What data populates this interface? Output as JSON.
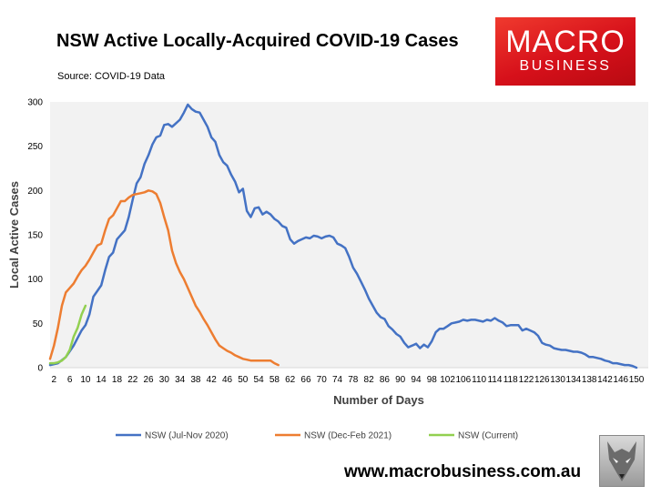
{
  "header": {
    "title": "NSW Active Locally-Acquired COVID-19 Cases",
    "source": "Source: COVID-19 Data"
  },
  "logo": {
    "line1": "MACRO",
    "line2": "BUSINESS"
  },
  "footer": {
    "website": "www.macrobusiness.com.au"
  },
  "colors": {
    "background": "#f2f2f2",
    "blue": "#4472c4",
    "orange": "#ed7d31",
    "green": "#92d050",
    "logo_red": "#e31b23"
  },
  "chart_data": {
    "type": "line",
    "title": "NSW Active Locally-Acquired COVID-19 Cases",
    "xlabel": "Number of Days",
    "ylabel": "Local Active Cases",
    "xlim": [
      1,
      153
    ],
    "ylim": [
      0,
      300
    ],
    "x_ticks": [
      2,
      6,
      10,
      14,
      18,
      22,
      26,
      30,
      34,
      38,
      42,
      46,
      50,
      54,
      58,
      62,
      66,
      70,
      74,
      78,
      82,
      86,
      90,
      94,
      98,
      102,
      106,
      110,
      114,
      118,
      122,
      126,
      130,
      134,
      138,
      142,
      146,
      150
    ],
    "y_ticks": [
      0,
      50,
      100,
      150,
      200,
      250,
      300
    ],
    "grid": false,
    "legend_position": "bottom",
    "series": [
      {
        "name": "NSW (Jul-Nov 2020)",
        "color": "#4472c4",
        "points": [
          [
            1,
            3
          ],
          [
            3,
            5
          ],
          [
            5,
            12
          ],
          [
            7,
            25
          ],
          [
            9,
            42
          ],
          [
            10,
            48
          ],
          [
            11,
            60
          ],
          [
            12,
            80
          ],
          [
            14,
            93
          ],
          [
            15,
            110
          ],
          [
            16,
            125
          ],
          [
            17,
            130
          ],
          [
            18,
            145
          ],
          [
            20,
            155
          ],
          [
            21,
            170
          ],
          [
            22,
            190
          ],
          [
            23,
            208
          ],
          [
            24,
            215
          ],
          [
            25,
            230
          ],
          [
            26,
            240
          ],
          [
            27,
            252
          ],
          [
            28,
            260
          ],
          [
            29,
            262
          ],
          [
            30,
            274
          ],
          [
            31,
            275
          ],
          [
            32,
            272
          ],
          [
            33,
            276
          ],
          [
            34,
            280
          ],
          [
            35,
            288
          ],
          [
            36,
            297
          ],
          [
            37,
            292
          ],
          [
            38,
            289
          ],
          [
            39,
            288
          ],
          [
            40,
            280
          ],
          [
            41,
            272
          ],
          [
            42,
            260
          ],
          [
            43,
            255
          ],
          [
            44,
            240
          ],
          [
            45,
            232
          ],
          [
            46,
            228
          ],
          [
            47,
            218
          ],
          [
            48,
            210
          ],
          [
            49,
            198
          ],
          [
            50,
            202
          ],
          [
            51,
            177
          ],
          [
            52,
            170
          ],
          [
            53,
            180
          ],
          [
            54,
            181
          ],
          [
            55,
            173
          ],
          [
            56,
            176
          ],
          [
            57,
            173
          ],
          [
            58,
            168
          ],
          [
            59,
            165
          ],
          [
            60,
            160
          ],
          [
            61,
            158
          ],
          [
            62,
            145
          ],
          [
            63,
            140
          ],
          [
            64,
            143
          ],
          [
            65,
            145
          ],
          [
            66,
            147
          ],
          [
            67,
            146
          ],
          [
            68,
            149
          ],
          [
            69,
            148
          ],
          [
            70,
            146
          ],
          [
            71,
            148
          ],
          [
            72,
            149
          ],
          [
            73,
            147
          ],
          [
            74,
            140
          ],
          [
            75,
            138
          ],
          [
            76,
            135
          ],
          [
            77,
            125
          ],
          [
            78,
            113
          ],
          [
            79,
            106
          ],
          [
            80,
            97
          ],
          [
            81,
            88
          ],
          [
            82,
            78
          ],
          [
            83,
            70
          ],
          [
            84,
            62
          ],
          [
            85,
            57
          ],
          [
            86,
            55
          ],
          [
            87,
            47
          ],
          [
            88,
            43
          ],
          [
            89,
            38
          ],
          [
            90,
            35
          ],
          [
            91,
            28
          ],
          [
            92,
            23
          ],
          [
            93,
            25
          ],
          [
            94,
            27
          ],
          [
            95,
            22
          ],
          [
            96,
            26
          ],
          [
            97,
            23
          ],
          [
            98,
            30
          ],
          [
            99,
            40
          ],
          [
            100,
            44
          ],
          [
            101,
            44
          ],
          [
            102,
            47
          ],
          [
            103,
            50
          ],
          [
            104,
            51
          ],
          [
            105,
            52
          ],
          [
            106,
            54
          ],
          [
            107,
            53
          ],
          [
            108,
            54
          ],
          [
            109,
            54
          ],
          [
            110,
            53
          ],
          [
            111,
            52
          ],
          [
            112,
            54
          ],
          [
            113,
            53
          ],
          [
            114,
            56
          ],
          [
            115,
            53
          ],
          [
            116,
            51
          ],
          [
            117,
            47
          ],
          [
            118,
            48
          ],
          [
            119,
            48
          ],
          [
            120,
            48
          ],
          [
            121,
            42
          ],
          [
            122,
            44
          ],
          [
            123,
            42
          ],
          [
            124,
            40
          ],
          [
            125,
            36
          ],
          [
            126,
            28
          ],
          [
            127,
            26
          ],
          [
            128,
            25
          ],
          [
            129,
            22
          ],
          [
            130,
            21
          ],
          [
            131,
            20
          ],
          [
            132,
            20
          ],
          [
            133,
            19
          ],
          [
            134,
            18
          ],
          [
            135,
            18
          ],
          [
            136,
            17
          ],
          [
            137,
            15
          ],
          [
            138,
            12
          ],
          [
            139,
            12
          ],
          [
            140,
            11
          ],
          [
            141,
            10
          ],
          [
            142,
            8
          ],
          [
            143,
            7
          ],
          [
            144,
            5
          ],
          [
            145,
            5
          ],
          [
            146,
            4
          ],
          [
            147,
            3
          ],
          [
            148,
            3
          ],
          [
            149,
            2
          ],
          [
            150,
            0
          ]
        ]
      },
      {
        "name": "NSW (Dec-Feb 2021)",
        "color": "#ed7d31",
        "points": [
          [
            1,
            10
          ],
          [
            2,
            25
          ],
          [
            3,
            45
          ],
          [
            4,
            70
          ],
          [
            5,
            85
          ],
          [
            6,
            90
          ],
          [
            7,
            95
          ],
          [
            8,
            103
          ],
          [
            9,
            110
          ],
          [
            10,
            115
          ],
          [
            11,
            122
          ],
          [
            12,
            130
          ],
          [
            13,
            138
          ],
          [
            14,
            140
          ],
          [
            15,
            155
          ],
          [
            16,
            168
          ],
          [
            17,
            172
          ],
          [
            18,
            180
          ],
          [
            19,
            188
          ],
          [
            20,
            188
          ],
          [
            21,
            192
          ],
          [
            22,
            195
          ],
          [
            23,
            196
          ],
          [
            24,
            197
          ],
          [
            25,
            198
          ],
          [
            26,
            200
          ],
          [
            27,
            199
          ],
          [
            28,
            196
          ],
          [
            29,
            186
          ],
          [
            30,
            170
          ],
          [
            31,
            155
          ],
          [
            32,
            132
          ],
          [
            33,
            118
          ],
          [
            34,
            108
          ],
          [
            35,
            100
          ],
          [
            36,
            90
          ],
          [
            37,
            80
          ],
          [
            38,
            70
          ],
          [
            39,
            63
          ],
          [
            40,
            55
          ],
          [
            41,
            48
          ],
          [
            42,
            40
          ],
          [
            43,
            32
          ],
          [
            44,
            25
          ],
          [
            45,
            22
          ],
          [
            46,
            19
          ],
          [
            47,
            17
          ],
          [
            48,
            14
          ],
          [
            49,
            12
          ],
          [
            50,
            10
          ],
          [
            51,
            9
          ],
          [
            52,
            8
          ],
          [
            53,
            8
          ],
          [
            54,
            8
          ],
          [
            55,
            8
          ],
          [
            56,
            8
          ],
          [
            57,
            8
          ],
          [
            58,
            5
          ],
          [
            59,
            3
          ]
        ]
      },
      {
        "name": "NSW (Current)",
        "color": "#92d050",
        "points": [
          [
            1,
            5
          ],
          [
            2,
            5
          ],
          [
            3,
            6
          ],
          [
            4,
            8
          ],
          [
            5,
            12
          ],
          [
            6,
            20
          ],
          [
            7,
            35
          ],
          [
            8,
            45
          ],
          [
            9,
            60
          ],
          [
            10,
            70
          ]
        ]
      }
    ]
  }
}
